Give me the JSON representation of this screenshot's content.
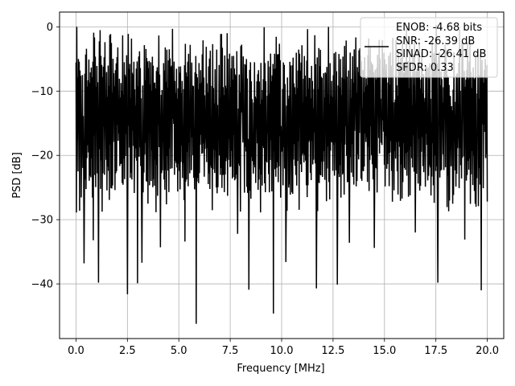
{
  "chart_data": {
    "type": "line",
    "xlabel": "Frequency [MHz]",
    "ylabel": "PSD [dB]",
    "xlim": [
      -0.8,
      20.8
    ],
    "ylim": [
      -48.5,
      2.3
    ],
    "x_ticks": [
      0.0,
      2.5,
      5.0,
      7.5,
      10.0,
      12.5,
      15.0,
      17.5,
      20.0
    ],
    "x_tick_labels": [
      "0.0",
      "2.5",
      "5.0",
      "7.5",
      "10.0",
      "12.5",
      "15.0",
      "17.5",
      "20.0"
    ],
    "y_ticks": [
      0,
      -10,
      -20,
      -30,
      -40
    ],
    "y_tick_labels": [
      "0",
      "−10",
      "−20",
      "−30",
      "−40"
    ],
    "grid": true,
    "legend_position": "top-right",
    "legend_entries": [
      "ENOB: -4.68 bits",
      "SNR: -26.39 dB",
      "SINAD: -26.41 dB",
      "SFDR: 0.33"
    ],
    "line_color": "#000000",
    "series": [
      {
        "x_start": 0.0,
        "x_end": 20.0,
        "num_points": 1024,
        "peak_x": 0.04,
        "peak_y": 0.0,
        "upper_envelope_approx": -5,
        "median_approx": -14,
        "lower_envelope_approx": -25,
        "deep_dips": [
          {
            "x": 0.4,
            "y": -36.8
          },
          {
            "x": 0.85,
            "y": -33.2
          },
          {
            "x": 1.1,
            "y": -39.8
          },
          {
            "x": 2.5,
            "y": -41.6
          },
          {
            "x": 3.0,
            "y": -39.9
          },
          {
            "x": 3.2,
            "y": -36.7
          },
          {
            "x": 4.1,
            "y": -34.3
          },
          {
            "x": 5.3,
            "y": -33.4
          },
          {
            "x": 5.85,
            "y": -46.2
          },
          {
            "x": 7.85,
            "y": -32.2
          },
          {
            "x": 8.4,
            "y": -40.9
          },
          {
            "x": 9.6,
            "y": -44.6
          },
          {
            "x": 10.2,
            "y": -36.6
          },
          {
            "x": 11.7,
            "y": -40.7
          },
          {
            "x": 12.7,
            "y": -40.1
          },
          {
            "x": 13.3,
            "y": -33.6
          },
          {
            "x": 14.5,
            "y": -34.4
          },
          {
            "x": 16.5,
            "y": -32.0
          },
          {
            "x": 17.6,
            "y": -39.8
          },
          {
            "x": 18.9,
            "y": -33.1
          },
          {
            "x": 19.7,
            "y": -41.0
          }
        ]
      }
    ]
  }
}
